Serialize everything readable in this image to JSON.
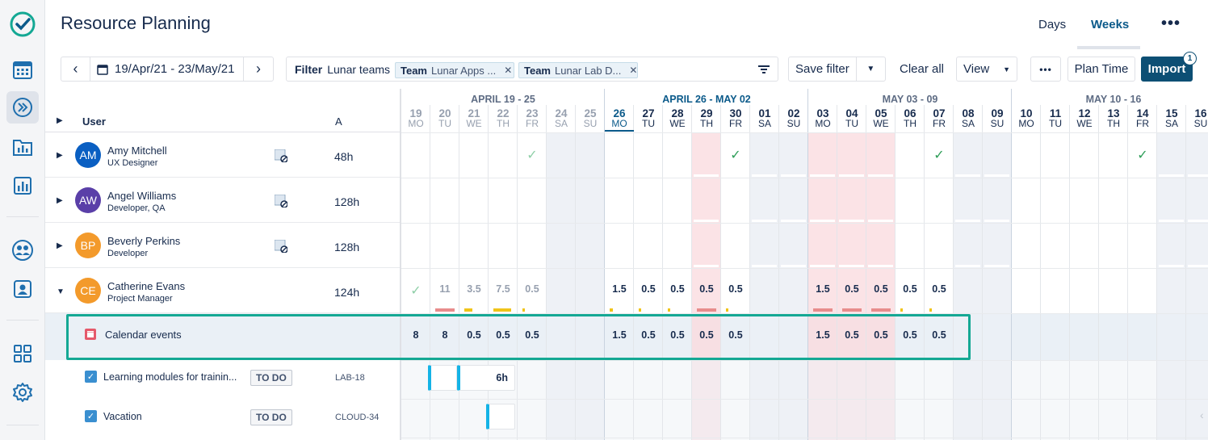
{
  "app": {
    "title": "Resource Planning",
    "tabs": [
      "Days",
      "Weeks"
    ],
    "active_tab": "Weeks"
  },
  "toolbar": {
    "date_range": "19/Apr/21 - 23/May/21",
    "filter_label": "Filter",
    "filter_value": "Lunar teams",
    "chips": [
      {
        "key": "Team",
        "value": "Lunar Apps ..."
      },
      {
        "key": "Team",
        "value": "Lunar Lab D..."
      }
    ],
    "save_filter": "Save filter",
    "clear_all": "Clear all",
    "view": "View",
    "plan_time": "Plan Time",
    "import": "Import",
    "import_badge": "1"
  },
  "table": {
    "col_user": "User",
    "col_hours": "A",
    "users": [
      {
        "initials": "AM",
        "name": "Amy Mitchell",
        "role": "UX Designer",
        "hours": "48h",
        "color": "#0a5fc2"
      },
      {
        "initials": "AW",
        "name": "Angel Williams",
        "role": "Developer, QA",
        "hours": "128h",
        "color": "#5a3fa8"
      },
      {
        "initials": "BP",
        "name": "Beverly Perkins",
        "role": "Developer",
        "hours": "128h",
        "color": "#f39a2b"
      },
      {
        "initials": "CE",
        "name": "Catherine Evans",
        "role": "Project Manager",
        "hours": "124h",
        "color": "#f39a2b"
      }
    ],
    "calendar_events_label": "Calendar events",
    "tasks": [
      {
        "title": "Learning modules for trainin...",
        "status": "TO DO",
        "key": "LAB-18",
        "block_label": "6h"
      },
      {
        "title": "Vacation",
        "status": "TO DO",
        "key": "CLOUD-34",
        "block_label": ""
      }
    ]
  },
  "calendar": {
    "weeks": [
      "APRIL 19 - 25",
      "APRIL 26 - MAY 02",
      "MAY 03 - 09",
      "MAY 10 - 16"
    ],
    "days": [
      {
        "n": "19",
        "w": "MO"
      },
      {
        "n": "20",
        "w": "TU"
      },
      {
        "n": "21",
        "w": "WE"
      },
      {
        "n": "22",
        "w": "TH"
      },
      {
        "n": "23",
        "w": "FR"
      },
      {
        "n": "24",
        "w": "SA"
      },
      {
        "n": "25",
        "w": "SU"
      },
      {
        "n": "26",
        "w": "MO"
      },
      {
        "n": "27",
        "w": "TU"
      },
      {
        "n": "28",
        "w": "WE"
      },
      {
        "n": "29",
        "w": "TH"
      },
      {
        "n": "30",
        "w": "FR"
      },
      {
        "n": "01",
        "w": "SA"
      },
      {
        "n": "02",
        "w": "SU"
      },
      {
        "n": "03",
        "w": "MO"
      },
      {
        "n": "04",
        "w": "TU"
      },
      {
        "n": "05",
        "w": "WE"
      },
      {
        "n": "06",
        "w": "TH"
      },
      {
        "n": "07",
        "w": "FR"
      },
      {
        "n": "08",
        "w": "SA"
      },
      {
        "n": "09",
        "w": "SU"
      },
      {
        "n": "10",
        "w": "MO"
      },
      {
        "n": "11",
        "w": "TU"
      },
      {
        "n": "12",
        "w": "WE"
      },
      {
        "n": "13",
        "w": "TH"
      },
      {
        "n": "14",
        "w": "FR"
      },
      {
        "n": "15",
        "w": "SA"
      },
      {
        "n": "16",
        "w": "SU"
      }
    ],
    "checks": {
      "amy": [
        4,
        11,
        18,
        25
      ]
    },
    "catherine_values": [
      "",
      "11",
      "3.5",
      "7.5",
      "0.5",
      "",
      "",
      "1.5",
      "0.5",
      "0.5",
      "0.5",
      "0.5",
      "",
      "",
      "1.5",
      "0.5",
      "0.5",
      "0.5",
      "0.5",
      "",
      "",
      "",
      "",
      "",
      "",
      "",
      "",
      ""
    ],
    "calendar_event_values": [
      "8",
      "8",
      "0.5",
      "0.5",
      "0.5",
      "",
      "",
      "1.5",
      "0.5",
      "0.5",
      "0.5",
      "0.5",
      "",
      "",
      "1.5",
      "0.5",
      "0.5",
      "0.5",
      "0.5",
      "",
      "",
      "",
      "",
      "",
      "",
      "",
      "",
      ""
    ],
    "colors": {
      "weekend": "#eef1f6",
      "holiday": "#fbe3e6",
      "today": "#0b5a8a",
      "check": "#2e9e58",
      "highlight": "#14a894",
      "task_bar": "#14b3e6"
    }
  }
}
